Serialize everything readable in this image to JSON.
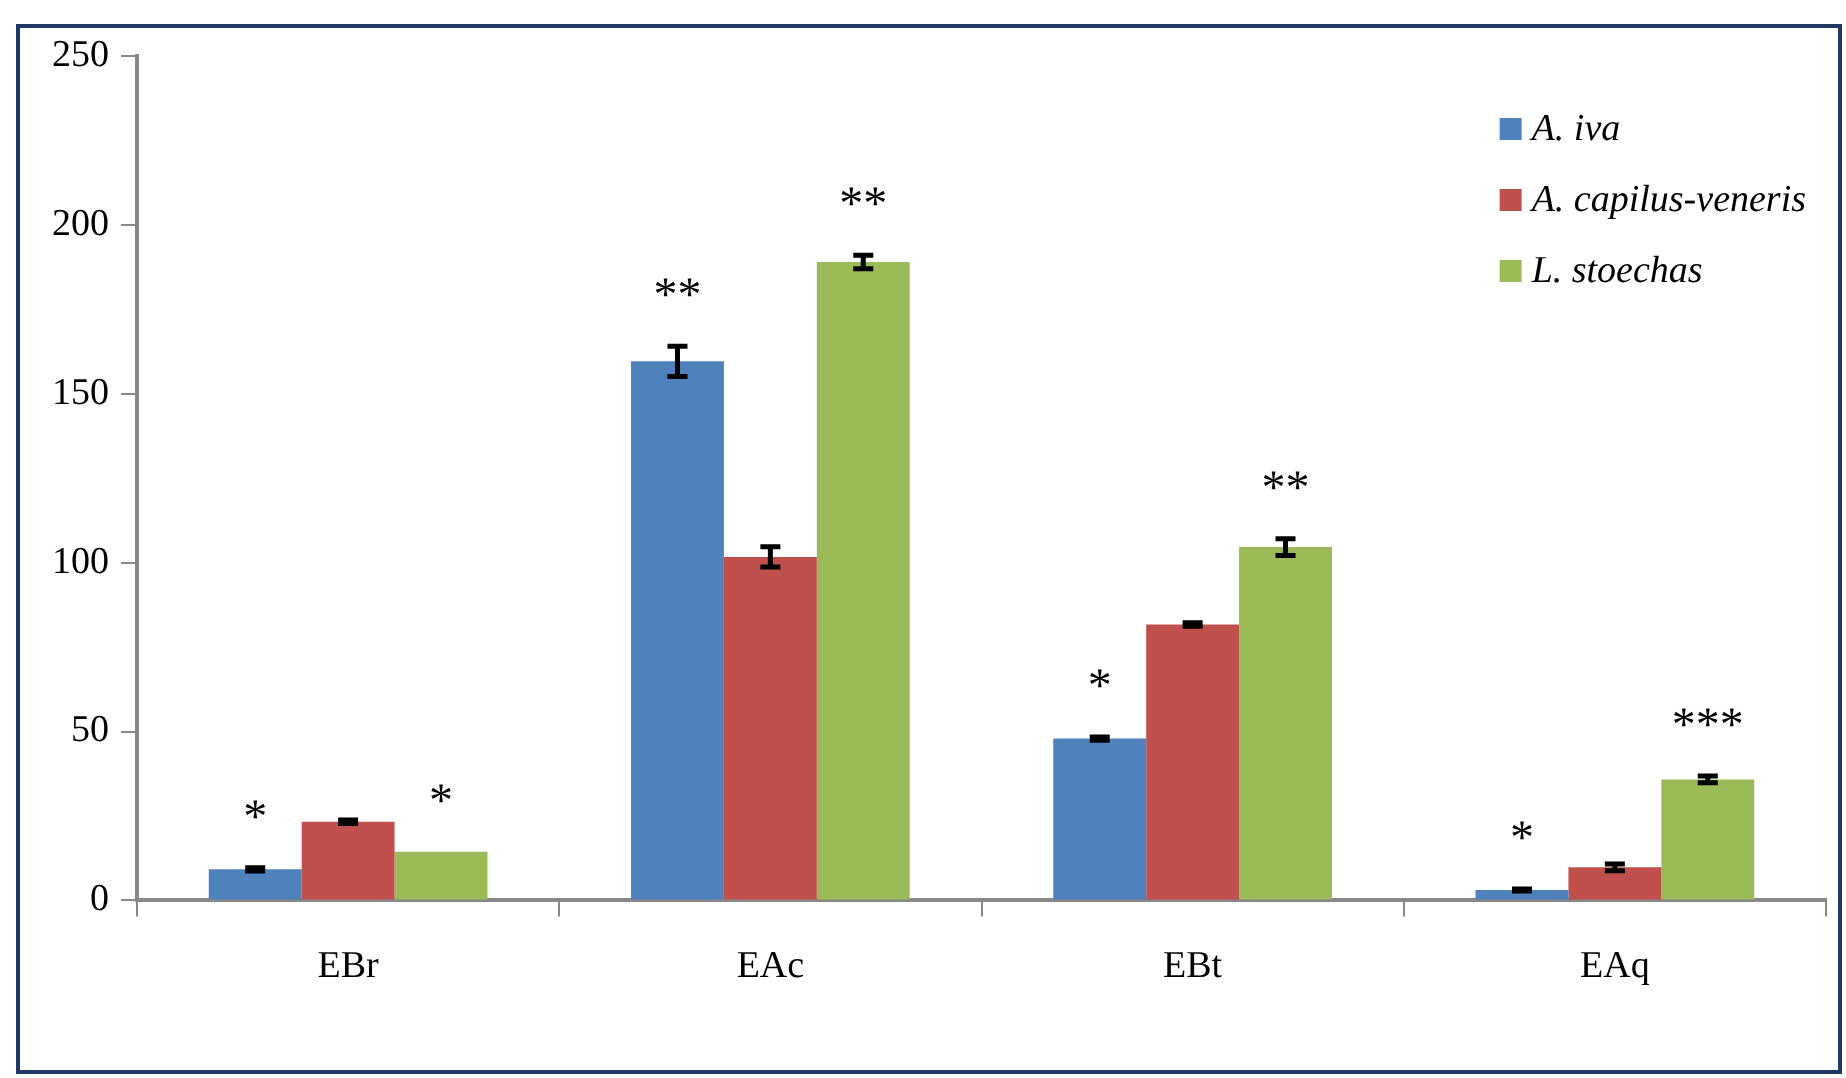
{
  "chart_data": {
    "type": "bar",
    "categories": [
      "EBr",
      "EAc",
      "EBt",
      "EAq"
    ],
    "series": [
      {
        "name": "A. iva",
        "color": "#4f81bd",
        "values": [
          9.2,
          159.6,
          47.9,
          3.1
        ],
        "errors": [
          0.5,
          4.5,
          0.5,
          0.3
        ],
        "value_labels": [
          "*",
          "**",
          "*",
          "*"
        ]
      },
      {
        "name": "A. capilus-veneris",
        "color": "#c0504d",
        "values": [
          23.3,
          101.7,
          81.7,
          9.8
        ],
        "errors": [
          0.5,
          3,
          0.5,
          1
        ]
      },
      {
        "name": "L. stoechas",
        "color": "#9bbb59",
        "values": [
          14.4,
          189,
          104.6,
          35.8
        ],
        "errors": [
          null,
          2,
          2.5,
          1
        ],
        "value_labels": [
          "*",
          "**",
          "**",
          "***"
        ]
      }
    ],
    "ylim": [
      0,
      250
    ],
    "yticks": [
      0,
      50,
      100,
      150,
      200,
      250
    ],
    "grid": false,
    "legend": "top right"
  }
}
